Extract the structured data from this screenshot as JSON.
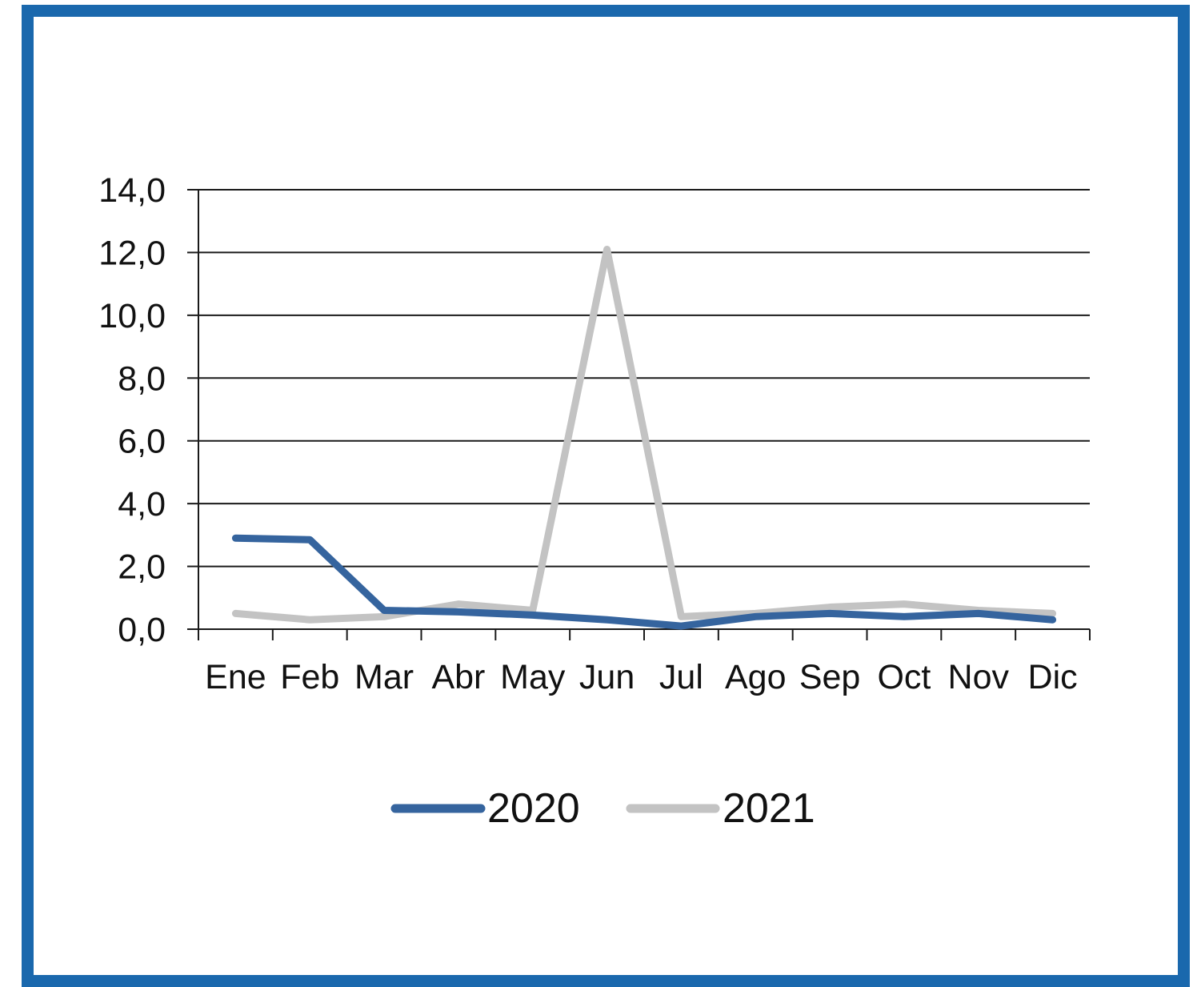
{
  "chart_data": {
    "type": "line",
    "title": "",
    "xlabel": "",
    "ylabel": "",
    "categories": [
      "Ene",
      "Feb",
      "Mar",
      "Abr",
      "May",
      "Jun",
      "Jul",
      "Ago",
      "Sep",
      "Oct",
      "Nov",
      "Dic"
    ],
    "y_ticks": [
      "0,0",
      "2,0",
      "4,0",
      "6,0",
      "8,0",
      "10,0",
      "12,0",
      "14,0"
    ],
    "ylim": [
      0,
      14
    ],
    "grid": "horizontal",
    "legend_position": "bottom-center",
    "series": [
      {
        "name": "2020",
        "color": "#35649e",
        "values": [
          2.9,
          2.85,
          0.6,
          0.55,
          0.45,
          0.3,
          0.1,
          0.4,
          0.5,
          0.4,
          0.5,
          0.3
        ]
      },
      {
        "name": "2021",
        "color": "#c3c3c3",
        "values": [
          0.5,
          0.3,
          0.4,
          0.8,
          0.6,
          12.1,
          0.4,
          0.5,
          0.7,
          0.8,
          0.6,
          0.5
        ]
      }
    ]
  }
}
